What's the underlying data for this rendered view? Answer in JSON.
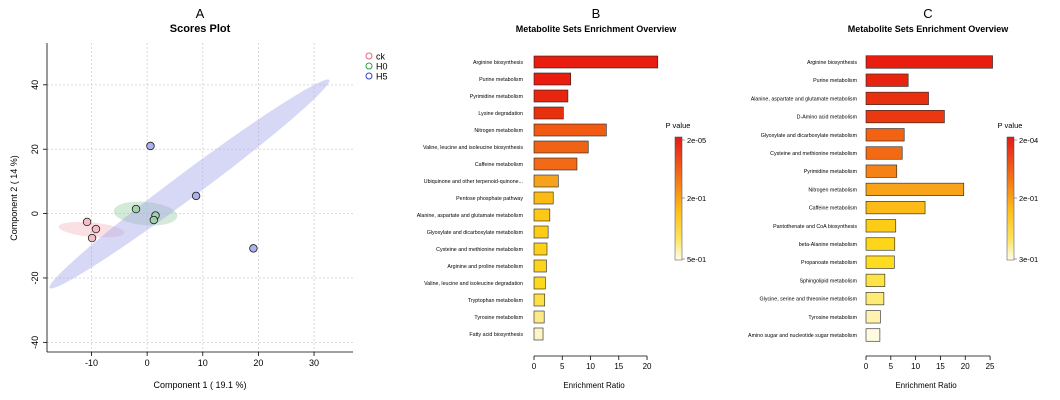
{
  "chart_data": [
    {
      "type": "scatter",
      "panel_letter": "A",
      "title": "Scores Plot",
      "xlabel": "Component 1 ( 19.1 %)",
      "ylabel": "Component 2 ( 14 %)",
      "xlim": [
        -18,
        37
      ],
      "ylim": [
        -43,
        53
      ],
      "xticks": [
        -10,
        0,
        10,
        20,
        30
      ],
      "yticks": [
        -40,
        -20,
        0,
        20,
        40
      ],
      "grid": true,
      "legend_position": "top-right",
      "series": [
        {
          "name": "ck",
          "color": "#e8657a",
          "fill": "#f4b8c1",
          "points": [
            {
              "x": -10.8,
              "y": -2.6
            },
            {
              "x": -9.2,
              "y": -4.8
            },
            {
              "x": -9.9,
              "y": -7.6
            }
          ],
          "ellipse": {
            "cx": -10.0,
            "cy": -5.0,
            "rx": 2.2,
            "ry": 6.0,
            "angle_deg": 80
          }
        },
        {
          "name": "H0",
          "color": "#2e9c4a",
          "fill": "#9fd1a9",
          "points": [
            {
              "x": -2.0,
              "y": 1.4
            },
            {
              "x": 1.5,
              "y": -0.6
            },
            {
              "x": 1.2,
              "y": -2.0
            }
          ],
          "ellipse": {
            "cx": -0.3,
            "cy": 0.0,
            "rx": 5.8,
            "ry": 3.6,
            "angle_deg": -12
          }
        },
        {
          "name": "H5",
          "color": "#3b3fc6",
          "fill": "#a6a9ec",
          "points": [
            {
              "x": 0.6,
              "y": 21.0
            },
            {
              "x": 8.8,
              "y": 5.5
            },
            {
              "x": 19.1,
              "y": -10.8
            }
          ],
          "ellipse": {
            "cx": 7.6,
            "cy": 9.2,
            "rx": 41.0,
            "ry": 3.0,
            "angle_deg": 52.3
          }
        }
      ]
    },
    {
      "type": "bar",
      "orientation": "horizontal",
      "panel_letter": "B",
      "title": "Metabolite Sets Enrichment Overview",
      "xlabel": "Enrichment Ratio",
      "xlim": [
        0,
        23
      ],
      "xticks": [
        0,
        5,
        10,
        15,
        20
      ],
      "legend_title": "P value",
      "legend_labels": [
        "2e-05",
        "2e-01",
        "5e-01"
      ],
      "categories": [
        "Arginine biosynthesis",
        "Purine metabolism",
        "Pyrimidine metabolism",
        "Lysine degradation",
        "Nitrogen metabolism",
        "Valine, leucine and isoleucine biosynthesis",
        "Caffeine metabolism",
        "Ubiquinone and other terpenoid-quinone...",
        "Pentose phosphate pathway",
        "Alanine, aspartate and glutamate metabolism",
        "Glyoxylate and dicarboxylate metabolism",
        "Cysteine and methionine metabolism",
        "Arginine and proline metabolism",
        "Valine, leucine and isoleucine degradation",
        "Tryptophan metabolism",
        "Tyrosine metabolism",
        "Fatty acid biosynthesis"
      ],
      "values": [
        21.9,
        6.5,
        6.0,
        5.2,
        12.8,
        9.6,
        7.6,
        4.3,
        3.4,
        2.8,
        2.5,
        2.3,
        2.2,
        2.0,
        1.9,
        1.8,
        1.6
      ],
      "colors": [
        "#e81c0f",
        "#e81c0f",
        "#e8260f",
        "#e8300f",
        "#f25a12",
        "#f06214",
        "#f26a16",
        "#f7a21c",
        "#fbbb15",
        "#fdc916",
        "#fdcc16",
        "#fdd019",
        "#fed31b",
        "#fed71f",
        "#fde048",
        "#fde988",
        "#fdf5c8"
      ]
    },
    {
      "type": "bar",
      "orientation": "horizontal",
      "panel_letter": "C",
      "title": "Metabolite Sets Enrichment Overview",
      "xlabel": "Enrichment Ratio",
      "xlim": [
        0,
        27
      ],
      "xticks": [
        0,
        5,
        10,
        15,
        20,
        25
      ],
      "legend_title": "P value",
      "legend_labels": [
        "2e-04",
        "2e-01",
        "3e-01"
      ],
      "categories": [
        "Arginine biosynthesis",
        "Purine metabolism",
        "Alanine, aspartate and glutamate metabolism",
        "D-Amino acid metabolism",
        "Glyoxylate and dicarboxylate metabolism",
        "Cysteine and methionine metabolism",
        "Pyrimidine metabolism",
        "Nitrogen metabolism",
        "Caffeine metabolism",
        "Pantothenate and CoA biosynthesis",
        "beta-Alanine metabolism",
        "Propanoate metabolism",
        "Sphingolipid metabolism",
        "Glycine, serine and threonine metabolism",
        "Tyrosine metabolism",
        "Amino sugar and nucleotide sugar metabolism"
      ],
      "values": [
        25.5,
        8.5,
        12.6,
        15.8,
        7.7,
        7.3,
        6.2,
        19.7,
        11.9,
        6.0,
        5.8,
        5.7,
        3.8,
        3.6,
        2.9,
        2.8
      ],
      "colors": [
        "#e81c0f",
        "#e8240f",
        "#e8300f",
        "#ea3810",
        "#f26212",
        "#f26a14",
        "#f58214",
        "#f8a31a",
        "#fcbb16",
        "#fdcc16",
        "#fdd519",
        "#fedc1f",
        "#fde348",
        "#fdea77",
        "#fdf2b0",
        "#fefbe2"
      ]
    }
  ]
}
